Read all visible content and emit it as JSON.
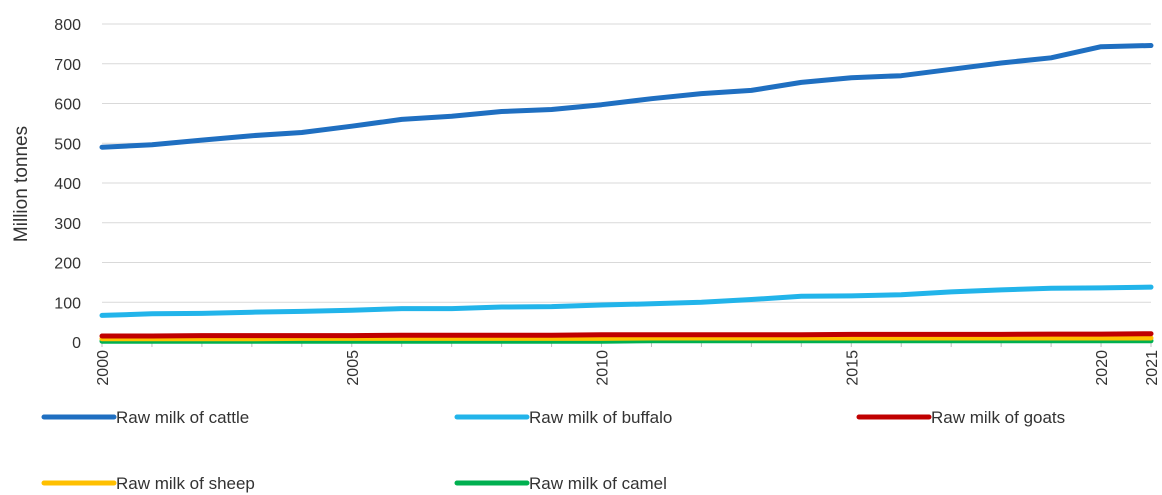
{
  "chart_data": {
    "type": "line",
    "title": "",
    "xlabel": "",
    "ylabel": "Million tonnes",
    "ylim": [
      0,
      800
    ],
    "yticks": [
      0,
      100,
      200,
      300,
      400,
      500,
      600,
      700,
      800
    ],
    "xlim": [
      2000,
      2021
    ],
    "xticks": [
      2000,
      2005,
      2010,
      2015,
      2020,
      2021
    ],
    "grid": true,
    "legend_position": "bottom",
    "x": [
      2000,
      2001,
      2002,
      2003,
      2004,
      2005,
      2006,
      2007,
      2008,
      2009,
      2010,
      2011,
      2012,
      2013,
      2014,
      2015,
      2016,
      2017,
      2018,
      2019,
      2020,
      2021
    ],
    "series": [
      {
        "name": "Raw milk of cattle",
        "color": "#1F6FC1",
        "values": [
          490,
          496,
          508,
          519,
          527,
          543,
          560,
          568,
          580,
          585,
          597,
          612,
          625,
          633,
          653,
          665,
          670,
          686,
          702,
          715,
          743,
          746
        ]
      },
      {
        "name": "Raw milk of buffalo",
        "color": "#22B4EA",
        "values": [
          67,
          71,
          72,
          75,
          77,
          80,
          84,
          84,
          88,
          89,
          93,
          96,
          100,
          107,
          115,
          116,
          119,
          126,
          131,
          135,
          136,
          138
        ]
      },
      {
        "name": "Raw milk of goats",
        "color": "#C00000",
        "values": [
          15,
          15,
          16,
          16,
          16,
          16,
          17,
          17,
          17,
          17,
          18,
          18,
          18,
          18,
          18,
          19,
          19,
          19,
          19,
          20,
          20,
          21
        ]
      },
      {
        "name": "Raw milk of sheep",
        "color": "#FFC000",
        "values": [
          8,
          8,
          8,
          8,
          9,
          9,
          9,
          9,
          9,
          9,
          9,
          10,
          10,
          10,
          10,
          10,
          10,
          10,
          10,
          10,
          10,
          10
        ]
      },
      {
        "name": "Raw milk of camel",
        "color": "#00B050",
        "values": [
          2,
          2,
          2,
          2,
          2,
          2,
          2,
          2,
          2,
          2,
          2,
          3,
          3,
          3,
          3,
          3,
          3,
          3,
          3,
          3,
          3,
          3
        ]
      }
    ]
  }
}
